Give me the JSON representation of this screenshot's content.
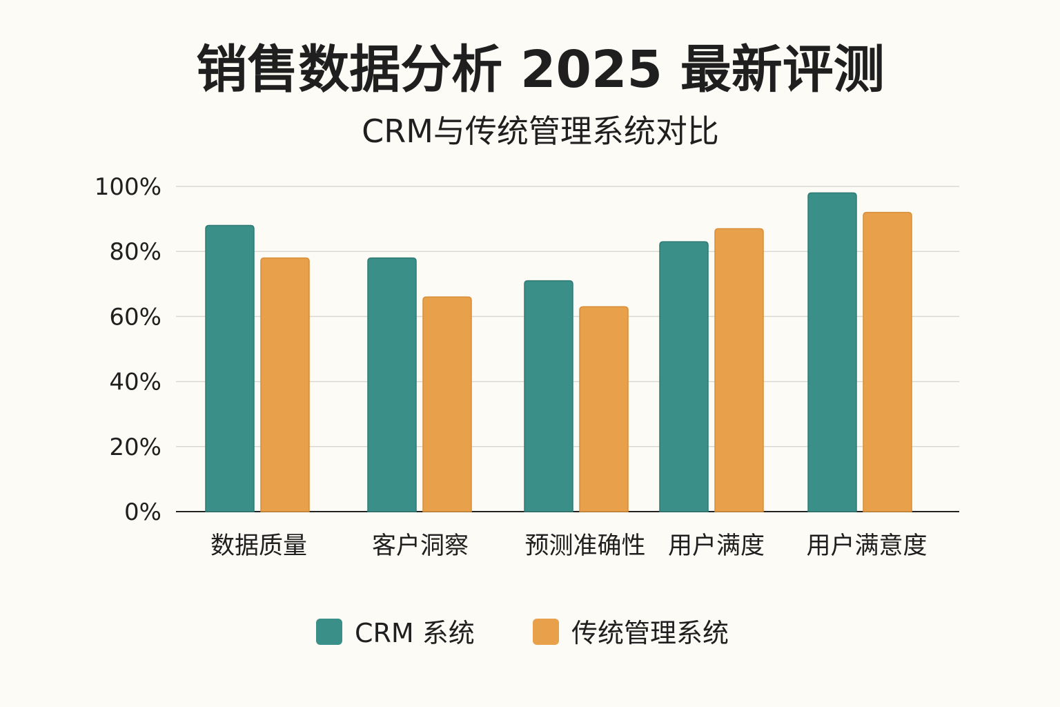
{
  "chart_data": {
    "type": "bar",
    "title": "销售数据分析 2025 最新评测",
    "subtitle": "CRM与传统管理系统对比",
    "xlabel": "",
    "ylabel": "",
    "ylim": [
      0,
      100
    ],
    "yticks": [
      "0%",
      "20%",
      "40%",
      "60%",
      "80%",
      "100%"
    ],
    "grid": true,
    "legend_position": "bottom",
    "categories": [
      "数据质量",
      "客户洞察",
      "预测准确性",
      "用户满度",
      "用户满意度"
    ],
    "series": [
      {
        "name": "CRM 系统",
        "color": "#3a8f88",
        "values": [
          88,
          78,
          71,
          83,
          98
        ]
      },
      {
        "name": "传统管理系统",
        "color": "#e8a04a",
        "values": [
          78,
          66,
          63,
          87,
          92
        ]
      }
    ]
  }
}
